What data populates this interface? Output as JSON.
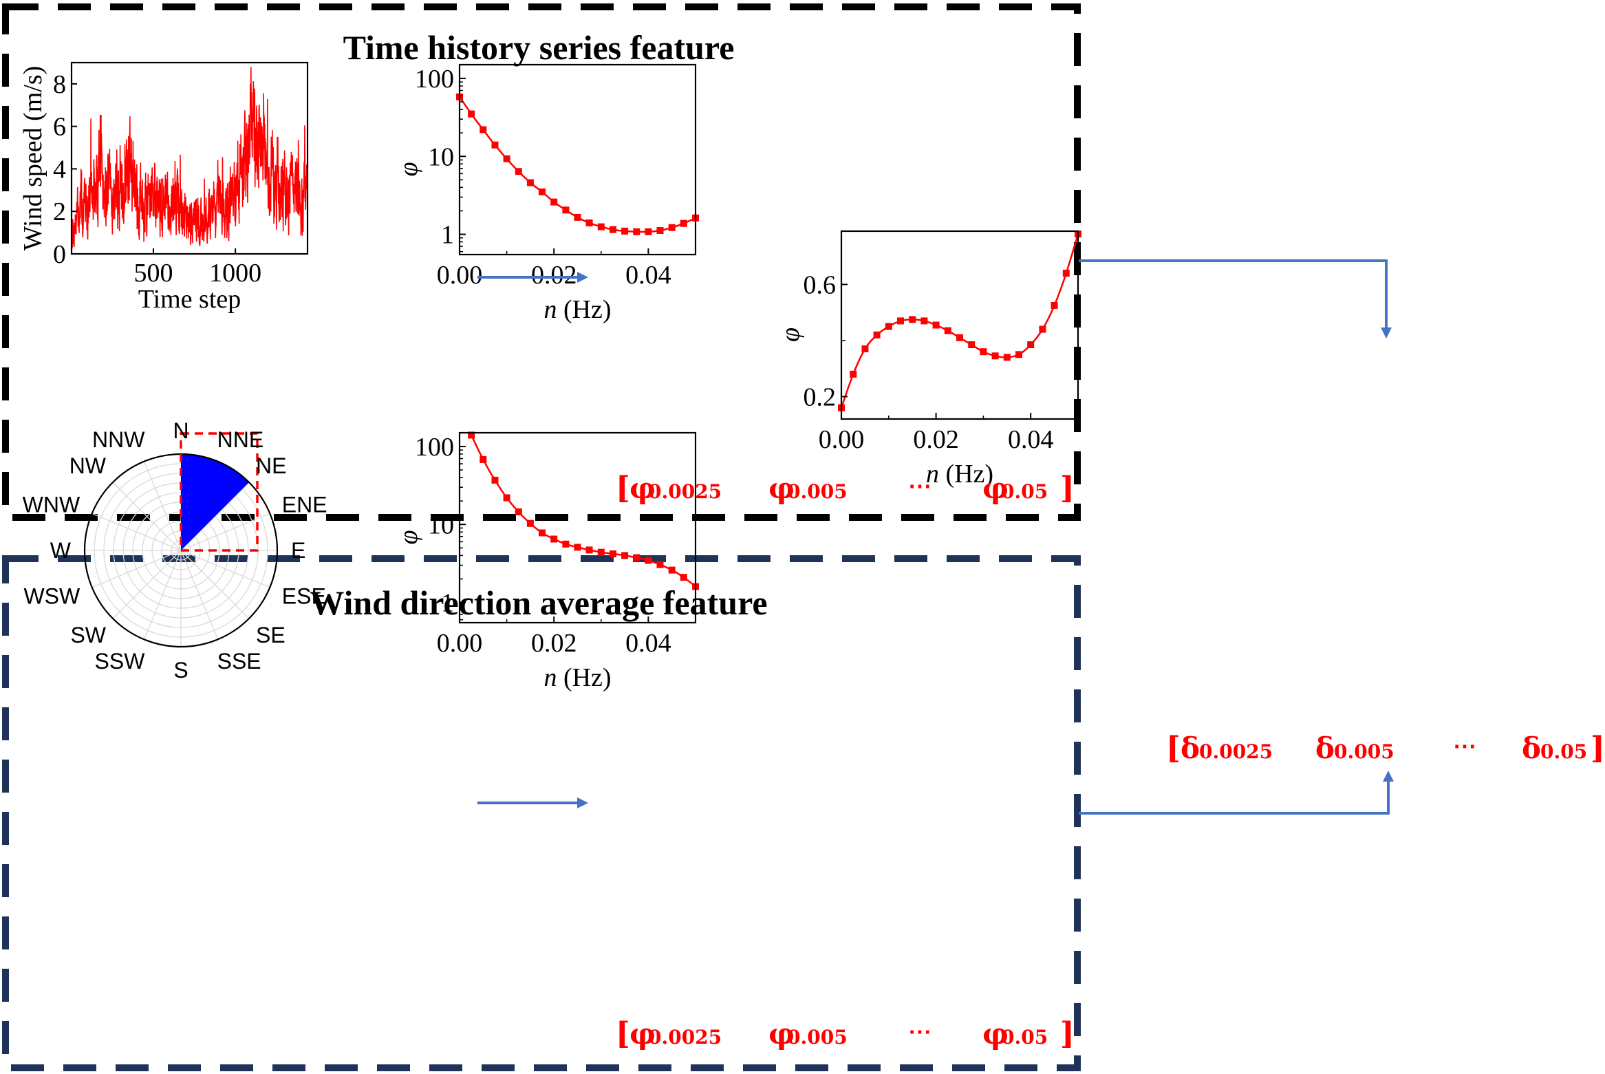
{
  "panels": {
    "top_title": "Time history series feature",
    "bottom_title": "Wind direction average feature"
  },
  "colors": {
    "top_frame": "#000000",
    "bottom_frame": "#1f3358",
    "series": "#ff0000",
    "arrow": "#4472c4",
    "sector": "#0000ff"
  },
  "vectors": {
    "phi": {
      "open": "[",
      "close": "]",
      "sym": "φ",
      "items": [
        "0.0025",
        "0.005",
        "0.05"
      ],
      "ellipsis": "⋯"
    },
    "delta": {
      "open": "[",
      "close": "]",
      "sym": "δ",
      "items": [
        "0.0025",
        "0.005",
        "0.05"
      ],
      "ellipsis": "⋯"
    }
  },
  "polar": {
    "directions": [
      "N",
      "NNE",
      "NE",
      "ENE",
      "E",
      "ESE",
      "SE",
      "SSE",
      "S",
      "SSW",
      "SW",
      "WSW",
      "W",
      "WNW",
      "NW",
      "NNW"
    ],
    "highlight_sector": {
      "start_deg": 0,
      "end_deg": 45
    }
  },
  "chart_data": [
    {
      "id": "wind_speed",
      "type": "line",
      "title": "",
      "xlabel": "Time step",
      "ylabel": "Wind speed (m/s)",
      "xlim": [
        1,
        1440
      ],
      "ylim": [
        0,
        9
      ],
      "xticks": [
        500,
        1000
      ],
      "yticks": [
        0,
        2,
        4,
        6,
        8
      ],
      "series": [
        {
          "name": "wind speed",
          "seed": 7,
          "n": 1440,
          "envelope_x": [
            1,
            60,
            150,
            180,
            200,
            260,
            300,
            340,
            360,
            380,
            450,
            600,
            780,
            850,
            950,
            1050,
            1100,
            1150,
            1200,
            1280,
            1360,
            1440
          ],
          "envelope_y": [
            0.9,
            2.3,
            2.6,
            5.2,
            3.2,
            2.6,
            2.7,
            4.0,
            5.0,
            2.6,
            2.7,
            2.3,
            1.4,
            2.0,
            2.2,
            3.6,
            6.2,
            5.0,
            3.6,
            3.4,
            3.2,
            2.4
          ]
        }
      ]
    },
    {
      "id": "phi_time",
      "type": "line",
      "xlabel_italic": "n",
      "xlabel_unit": " (Hz)",
      "ylabel": "φ",
      "yscale": "log",
      "xlim": [
        0,
        0.05
      ],
      "ylim": [
        0.55,
        150
      ],
      "xticks": [
        "0.00",
        "0.02",
        "0.04"
      ],
      "yticks": [
        "1",
        "10",
        "100"
      ],
      "ytick_values": [
        1,
        10,
        100
      ],
      "xtick_values": [
        0,
        0.02,
        0.04
      ],
      "series": [
        {
          "name": "phi",
          "x": [
            0,
            0.0025,
            0.005,
            0.0075,
            0.01,
            0.0125,
            0.015,
            0.0175,
            0.02,
            0.0225,
            0.025,
            0.0275,
            0.03,
            0.0325,
            0.035,
            0.0375,
            0.04,
            0.0425,
            0.045,
            0.0475,
            0.05
          ],
          "y": [
            58,
            35,
            22,
            14,
            9.3,
            6.4,
            4.6,
            3.5,
            2.6,
            2.05,
            1.65,
            1.4,
            1.25,
            1.15,
            1.1,
            1.08,
            1.08,
            1.12,
            1.22,
            1.38,
            1.62
          ]
        }
      ]
    },
    {
      "id": "phi_direction",
      "type": "line",
      "xlabel_italic": "n",
      "xlabel_unit": " (Hz)",
      "ylabel": "φ",
      "yscale": "log",
      "xlim": [
        0,
        0.05
      ],
      "ylim": [
        0.55,
        150
      ],
      "xticks": [
        "0.00",
        "0.02",
        "0.04"
      ],
      "yticks": [
        "1",
        "10",
        "100"
      ],
      "ytick_values": [
        1,
        10,
        100
      ],
      "xtick_values": [
        0,
        0.02,
        0.04
      ],
      "series": [
        {
          "name": "phi",
          "x": [
            0.0025,
            0.005,
            0.0075,
            0.01,
            0.0125,
            0.015,
            0.0175,
            0.02,
            0.0225,
            0.025,
            0.0275,
            0.03,
            0.0325,
            0.035,
            0.0375,
            0.04,
            0.0425,
            0.045,
            0.0475,
            0.05
          ],
          "y": [
            140,
            68,
            37,
            22,
            14.5,
            10.3,
            7.8,
            6.5,
            5.6,
            5.1,
            4.7,
            4.4,
            4.2,
            4.0,
            3.75,
            3.45,
            3.05,
            2.6,
            2.1,
            1.6
          ]
        }
      ]
    },
    {
      "id": "delta",
      "type": "line",
      "xlabel_italic": "n",
      "xlabel_unit": " (Hz)",
      "ylabel": "φ",
      "yscale": "linear",
      "xlim": [
        0,
        0.05
      ],
      "ylim": [
        0.12,
        0.79
      ],
      "xticks": [
        "0.00",
        "0.02",
        "0.04"
      ],
      "yticks": [
        "0.2",
        "0.6"
      ],
      "ytick_values": [
        0.2,
        0.6
      ],
      "xtick_values": [
        0,
        0.02,
        0.04
      ],
      "series": [
        {
          "name": "delta",
          "x": [
            0,
            0.0025,
            0.005,
            0.0075,
            0.01,
            0.0125,
            0.015,
            0.0175,
            0.02,
            0.0225,
            0.025,
            0.0275,
            0.03,
            0.0325,
            0.035,
            0.0375,
            0.04,
            0.0425,
            0.045,
            0.0475,
            0.05
          ],
          "y": [
            0.16,
            0.28,
            0.37,
            0.42,
            0.45,
            0.47,
            0.475,
            0.47,
            0.455,
            0.435,
            0.41,
            0.385,
            0.36,
            0.345,
            0.34,
            0.35,
            0.385,
            0.44,
            0.525,
            0.64,
            0.78
          ]
        }
      ]
    }
  ]
}
